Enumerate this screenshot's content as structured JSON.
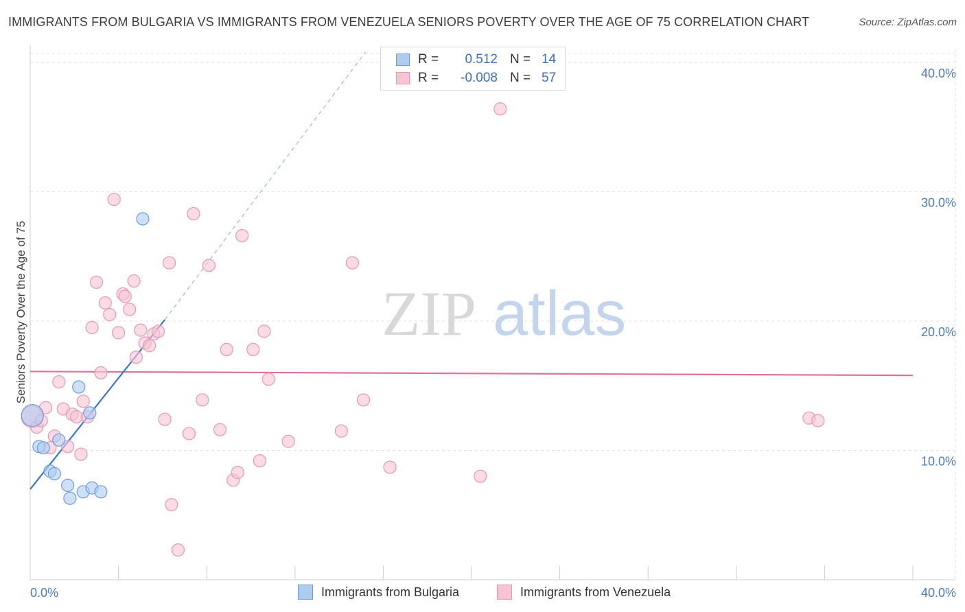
{
  "title": "IMMIGRANTS FROM BULGARIA VS IMMIGRANTS FROM VENEZUELA SENIORS POVERTY OVER THE AGE OF 75 CORRELATION CHART",
  "source": "Source: ZipAtlas.com",
  "watermark": {
    "zip": "ZIP",
    "atlas": "atlas"
  },
  "colors": {
    "bulgaria_fill": "#aecbf0",
    "bulgaria_stroke": "#6c9be0",
    "bulgaria_line": "#3a74d4",
    "venezuela_fill": "#f8c4d4",
    "venezuela_stroke": "#e995b1",
    "venezuela_line": "#e07097"
  },
  "legend": {
    "bulgaria": {
      "r_label": "R =",
      "r_value": "0.512",
      "n_label": "N =",
      "n_value": "14"
    },
    "venezuela": {
      "r_label": "R =",
      "r_value": "-0.008",
      "n_label": "N =",
      "n_value": "57"
    }
  },
  "bottom_legend": {
    "bulgaria": "Immigrants from Bulgaria",
    "venezuela": "Immigrants from Venezuela"
  },
  "chart_data": {
    "type": "scatter",
    "title": "IMMIGRANTS FROM BULGARIA VS IMMIGRANTS FROM VENEZUELA SENIORS POVERTY OVER THE AGE OF 75 CORRELATION CHART",
    "xlabel": "",
    "ylabel": "Seniors Poverty Over the Age of 75",
    "xlim": [
      0,
      40
    ],
    "ylim": [
      0,
      41
    ],
    "x_tick_labels": [
      {
        "value": 0,
        "label": "0.0%"
      },
      {
        "value": 40,
        "label": "40.0%"
      }
    ],
    "y_tick_labels": [
      {
        "value": 10,
        "label": "10.0%"
      },
      {
        "value": 20,
        "label": "20.0%"
      },
      {
        "value": 30,
        "label": "30.0%"
      },
      {
        "value": 40,
        "label": "40.0%"
      }
    ],
    "grid": true,
    "legend_position": "top-center",
    "series": [
      {
        "name": "Immigrants from Bulgaria",
        "points": [
          [
            0.1,
            12.7
          ],
          [
            0.4,
            10.3
          ],
          [
            0.6,
            10.2
          ],
          [
            0.9,
            8.4
          ],
          [
            1.1,
            8.2
          ],
          [
            1.3,
            10.8
          ],
          [
            1.7,
            7.3
          ],
          [
            1.8,
            6.3
          ],
          [
            2.2,
            14.9
          ],
          [
            2.4,
            6.8
          ],
          [
            2.7,
            12.9
          ],
          [
            2.8,
            7.1
          ],
          [
            3.2,
            6.8
          ],
          [
            5.1,
            27.9
          ]
        ],
        "trend": {
          "x": [
            0,
            6.1
          ],
          "y": [
            7.0,
            20.1
          ],
          "dashed_extension": {
            "x": [
              6.1,
              15.2
            ],
            "y": [
              20.1,
              40.8
            ]
          }
        }
      },
      {
        "name": "Immigrants from Venezuela",
        "points": [
          [
            0.1,
            12.6
          ],
          [
            0.3,
            11.8
          ],
          [
            0.5,
            12.3
          ],
          [
            0.7,
            13.3
          ],
          [
            0.9,
            10.2
          ],
          [
            1.1,
            11.1
          ],
          [
            1.3,
            15.3
          ],
          [
            1.5,
            13.2
          ],
          [
            1.7,
            10.3
          ],
          [
            1.9,
            12.8
          ],
          [
            2.1,
            12.6
          ],
          [
            2.3,
            9.7
          ],
          [
            2.4,
            13.8
          ],
          [
            2.6,
            12.6
          ],
          [
            2.8,
            19.5
          ],
          [
            3.0,
            23.0
          ],
          [
            3.2,
            16.0
          ],
          [
            3.4,
            21.4
          ],
          [
            3.6,
            20.5
          ],
          [
            3.8,
            29.4
          ],
          [
            4.0,
            19.1
          ],
          [
            4.2,
            22.1
          ],
          [
            4.3,
            21.9
          ],
          [
            4.5,
            20.9
          ],
          [
            4.7,
            23.1
          ],
          [
            4.8,
            17.2
          ],
          [
            5.0,
            19.3
          ],
          [
            5.2,
            18.3
          ],
          [
            5.4,
            18.1
          ],
          [
            5.6,
            19.0
          ],
          [
            5.8,
            19.2
          ],
          [
            6.1,
            12.4
          ],
          [
            6.3,
            24.5
          ],
          [
            6.4,
            5.8
          ],
          [
            6.7,
            2.3
          ],
          [
            7.2,
            11.3
          ],
          [
            7.4,
            28.3
          ],
          [
            7.8,
            13.9
          ],
          [
            8.1,
            24.3
          ],
          [
            8.6,
            11.6
          ],
          [
            8.9,
            17.8
          ],
          [
            9.2,
            7.7
          ],
          [
            9.4,
            8.3
          ],
          [
            9.6,
            26.6
          ],
          [
            10.1,
            17.8
          ],
          [
            10.4,
            9.2
          ],
          [
            10.6,
            19.2
          ],
          [
            10.8,
            15.5
          ],
          [
            11.7,
            10.7
          ],
          [
            14.1,
            11.5
          ],
          [
            14.6,
            24.5
          ],
          [
            15.1,
            13.9
          ],
          [
            16.3,
            8.7
          ],
          [
            20.4,
            8.0
          ],
          [
            21.3,
            36.4
          ],
          [
            35.3,
            12.5
          ],
          [
            35.7,
            12.3
          ]
        ],
        "trend": {
          "x": [
            0,
            40
          ],
          "y": [
            16.1,
            15.8
          ]
        }
      }
    ]
  }
}
